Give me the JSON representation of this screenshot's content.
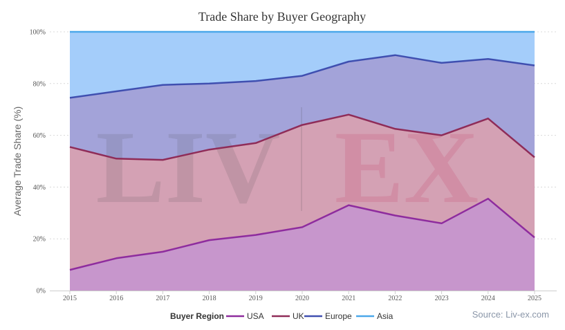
{
  "chart_data": {
    "type": "area",
    "stacking": "percent",
    "title": "Trade Share by Buyer Geography",
    "xlabel": "",
    "ylabel": "Average Trade Share (%)",
    "ylim": [
      0,
      100
    ],
    "y_ticks": [
      "0%",
      "20%",
      "40%",
      "60%",
      "80%",
      "100%"
    ],
    "x": [
      "2015",
      "2016",
      "2017",
      "2018",
      "2019",
      "2020",
      "2021",
      "2022",
      "2023",
      "2024",
      "2025"
    ],
    "series": [
      {
        "name": "USA",
        "line_color": "#8e2c9e",
        "fill_color": "#c796cc",
        "values": [
          8.0,
          12.5,
          15.0,
          19.5,
          21.5,
          24.5,
          33.0,
          29.0,
          26.0,
          35.5,
          20.5
        ]
      },
      {
        "name": "UK",
        "line_color": "#8f2c58",
        "fill_color": "#d4a1b4",
        "values": [
          47.5,
          38.5,
          35.5,
          35.0,
          35.5,
          39.5,
          35.0,
          33.5,
          34.0,
          31.0,
          31.0
        ]
      },
      {
        "name": "Europe",
        "line_color": "#3f4fb0",
        "fill_color": "#a3a3d9",
        "values": [
          19.0,
          26.0,
          29.0,
          25.5,
          24.0,
          19.0,
          20.5,
          28.5,
          28.0,
          23.0,
          35.5
        ]
      },
      {
        "name": "Asia",
        "line_color": "#4ba8ea",
        "fill_color": "#a4cdfa",
        "values": [
          25.5,
          23.0,
          20.5,
          20.0,
          19.0,
          17.0,
          11.5,
          9.0,
          12.0,
          10.5,
          13.0
        ]
      }
    ],
    "grid": true,
    "legend": {
      "title": "Buyer Region",
      "position": "bottom"
    },
    "source": "Source: Liv-ex.com",
    "watermark": [
      "LIV",
      "EX"
    ]
  }
}
